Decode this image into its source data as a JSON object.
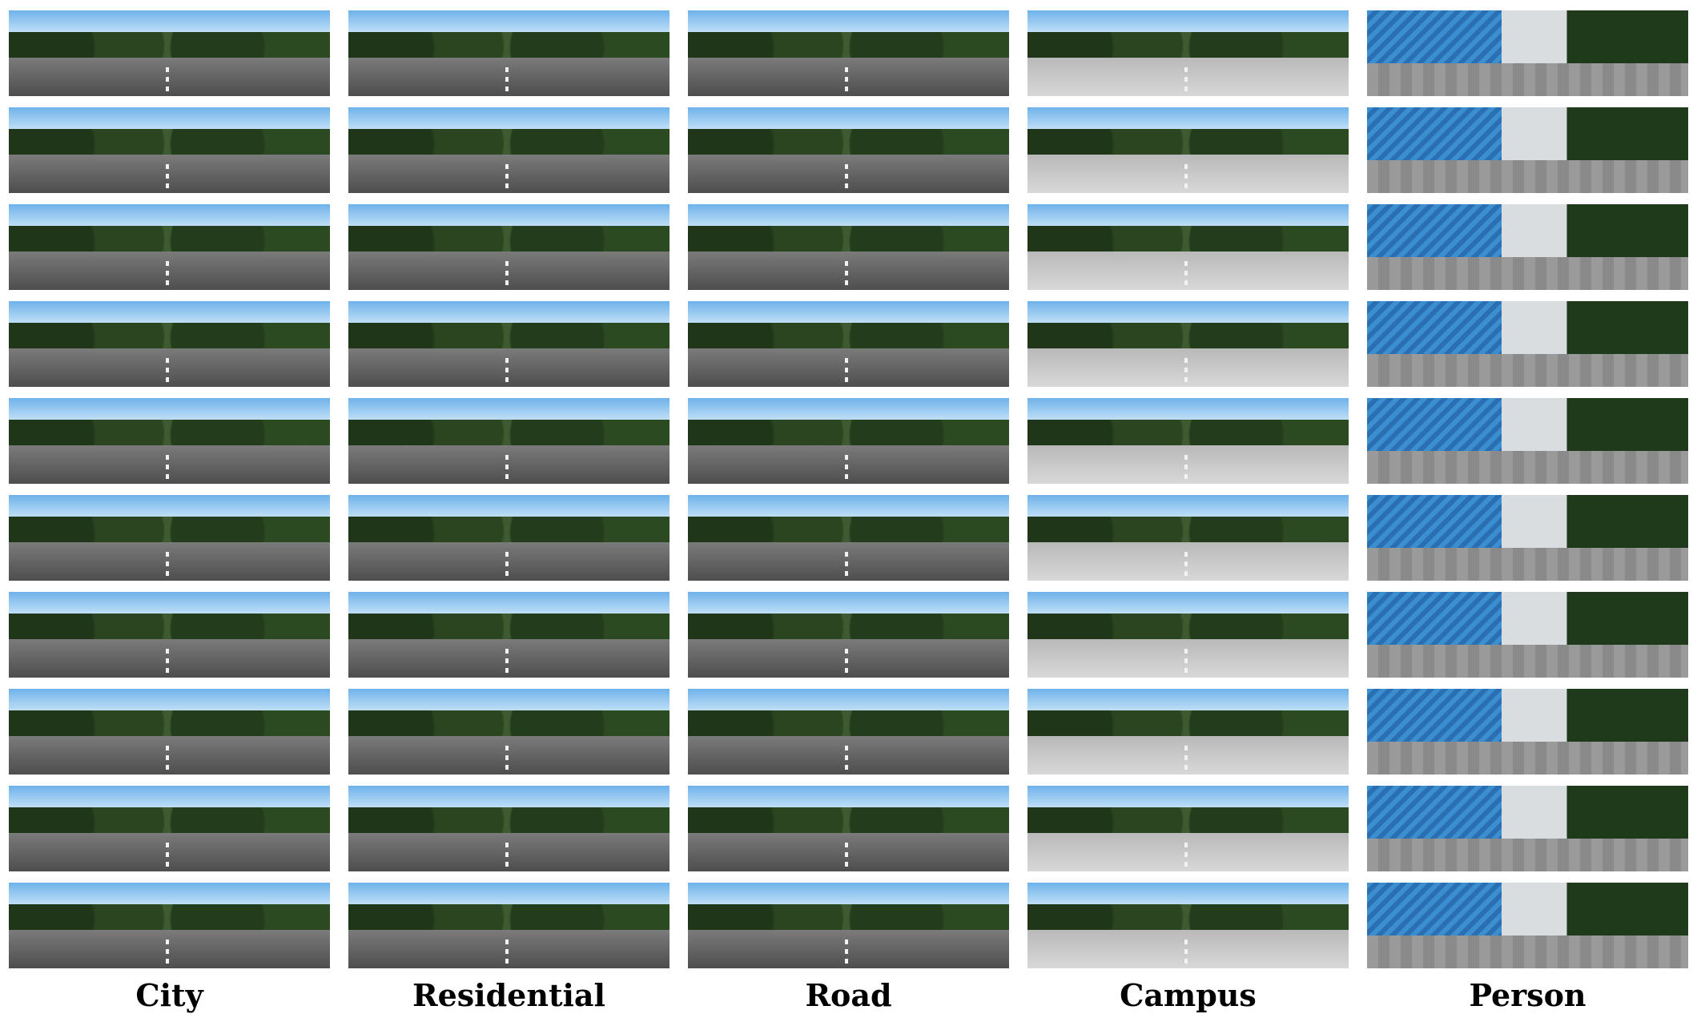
{
  "columns": [
    {
      "label": "City",
      "thumbnails": 10
    },
    {
      "label": "Residential",
      "thumbnails": 10
    },
    {
      "label": "Road",
      "thumbnails": 10
    },
    {
      "label": "Campus",
      "thumbnails": 10
    },
    {
      "label": "Person",
      "thumbnails": 10
    }
  ]
}
